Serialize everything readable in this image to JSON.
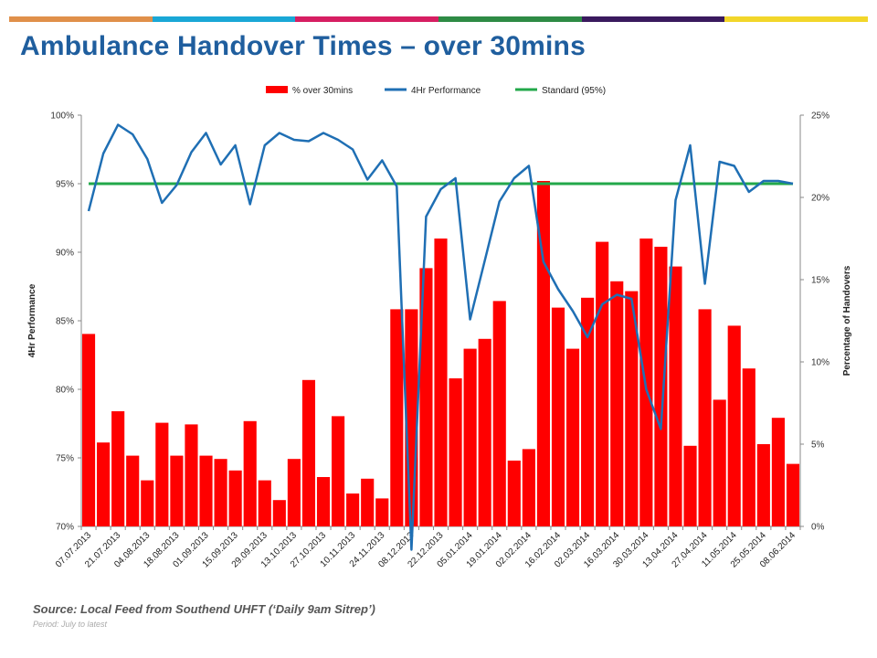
{
  "topbar_colors": [
    "#e0904a",
    "#1aa7d6",
    "#d61e62",
    "#2e8b45",
    "#3a1a5e",
    "#f2d62a"
  ],
  "title": "Ambulance Handover Times – over 30mins",
  "source": "Source: Local Feed from Southend UHFT (‘Daily 9am Sitrep’)",
  "period": "Period: July to latest",
  "chart_data": {
    "type": "bar",
    "legend": [
      {
        "label": "% over 30mins",
        "color": "#ff0000",
        "kind": "bar"
      },
      {
        "label": "4Hr Performance",
        "color": "#1f6fb4",
        "kind": "line"
      },
      {
        "label": "Standard (95%)",
        "color": "#22a84a",
        "kind": "line"
      }
    ],
    "legend_position": "top-center",
    "left_axis": {
      "label": "4Hr Performance",
      "min": 70,
      "max": 100,
      "ticks": [
        "70%",
        "75%",
        "80%",
        "85%",
        "90%",
        "95%",
        "100%"
      ]
    },
    "right_axis": {
      "label": "Percentage of Handovers",
      "min": 0,
      "max": 25,
      "ticks": [
        "0%",
        "5%",
        "10%",
        "15%",
        "20%",
        "25%"
      ]
    },
    "x_tick_labels": [
      "07.07.2013",
      "21.07.2013",
      "04.08.2013",
      "18.08.2013",
      "01.09.2013",
      "15.09.2013",
      "29.09.2013",
      "13.10.2013",
      "27.10.2013",
      "10.11.2013",
      "24.11.2013",
      "08.12.2013",
      "22.12.2013",
      "05.01.2014",
      "19.01.2014",
      "02.02.2014",
      "16.02.2014",
      "02.03.2014",
      "16.03.2014",
      "30.03.2014",
      "13.04.2014",
      "27.04.2014",
      "11.05.2014",
      "25.05.2014",
      "08.06.2014"
    ],
    "series": [
      {
        "name": "% over 30mins",
        "axis": "right",
        "values": [
          11.7,
          5.1,
          7.0,
          4.3,
          2.8,
          6.3,
          4.3,
          6.2,
          4.3,
          4.1,
          3.4,
          6.4,
          2.8,
          1.6,
          4.1,
          8.9,
          3.0,
          6.7,
          2.0,
          2.9,
          1.7,
          13.2,
          13.2,
          15.7,
          17.5,
          9.0,
          10.8,
          11.4,
          13.7,
          4.0,
          4.7,
          21.0,
          13.3,
          10.8,
          13.9,
          17.3,
          14.9,
          14.3,
          17.5,
          17.0,
          15.8,
          4.9,
          13.2,
          7.7,
          12.2,
          9.6,
          5.0,
          6.6,
          3.8
        ]
      },
      {
        "name": "4Hr Performance",
        "axis": "left",
        "values": [
          93.0,
          97.2,
          99.3,
          98.6,
          96.8,
          93.6,
          94.9,
          97.3,
          98.7,
          96.4,
          97.8,
          93.5,
          97.8,
          98.7,
          98.2,
          98.1,
          98.7,
          98.2,
          97.5,
          95.3,
          96.7,
          94.8,
          68.3,
          92.6,
          94.6,
          95.4,
          85.1,
          89.4,
          93.7,
          95.4,
          96.3,
          89.3,
          87.3,
          85.7,
          83.8,
          86.2,
          86.9,
          86.6,
          80.0,
          77.1,
          93.8,
          97.8,
          87.7,
          96.6,
          96.3,
          94.4,
          95.2,
          95.2,
          95.0
        ]
      },
      {
        "name": "Standard (95%)",
        "axis": "left",
        "value": 95
      }
    ]
  }
}
